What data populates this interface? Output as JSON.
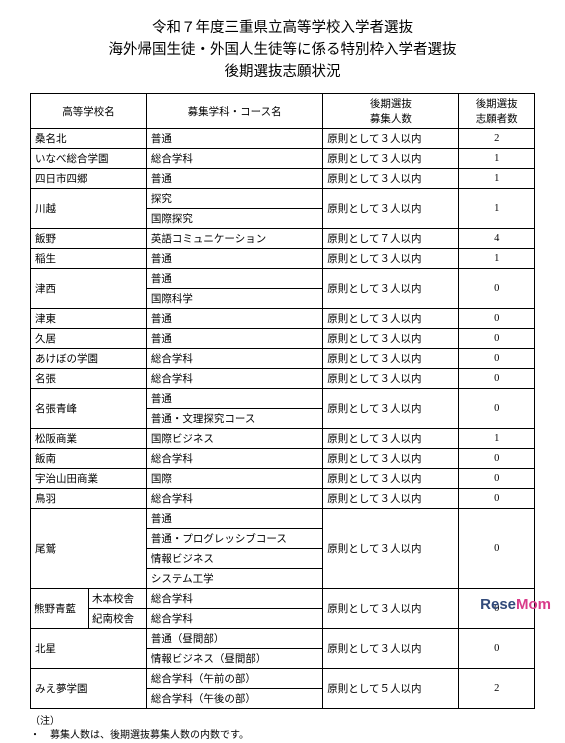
{
  "title_lines": [
    "令和７年度三重県立高等学校入学者選抜",
    "海外帰国生徒・外国人生徒等に係る特別枠入学者選抜",
    "後期選抜志願状況"
  ],
  "headers": {
    "school": "高等学校名",
    "dept": "募集学科・コース名",
    "capacity": "後期選抜\n募集人数",
    "applicants": "後期選抜\n志願者数"
  },
  "rows": [
    {
      "school": "桑名北",
      "dept": "普通",
      "cap": "原則として３人以内",
      "app": "2"
    },
    {
      "school": "いなべ総合学園",
      "dept": "総合学科",
      "cap": "原則として３人以内",
      "app": "1"
    },
    {
      "school": "四日市四郷",
      "dept": "普通",
      "cap": "原則として３人以内",
      "app": "1"
    },
    {
      "school": "川越",
      "depts": [
        "探究",
        "国際探究"
      ],
      "cap": "原則として３人以内",
      "app": "1"
    },
    {
      "school": "飯野",
      "dept": "英語コミュニケーション",
      "cap": "原則として７人以内",
      "app": "4"
    },
    {
      "school": "稲生",
      "dept": "普通",
      "cap": "原則として３人以内",
      "app": "1"
    },
    {
      "school": "津西",
      "depts": [
        "普通",
        "国際科学"
      ],
      "cap": "原則として３人以内",
      "app": "0"
    },
    {
      "school": "津東",
      "dept": "普通",
      "cap": "原則として３人以内",
      "app": "0"
    },
    {
      "school": "久居",
      "dept": "普通",
      "cap": "原則として３人以内",
      "app": "0"
    },
    {
      "school": "あけぼの学園",
      "dept": "総合学科",
      "cap": "原則として３人以内",
      "app": "0"
    },
    {
      "school": "名張",
      "dept": "総合学科",
      "cap": "原則として３人以内",
      "app": "0"
    },
    {
      "school": "名張青峰",
      "depts": [
        "普通",
        "普通・文理探究コース"
      ],
      "cap": "原則として３人以内",
      "app": "0"
    },
    {
      "school": "松阪商業",
      "dept": "国際ビジネス",
      "cap": "原則として３人以内",
      "app": "1"
    },
    {
      "school": "飯南",
      "dept": "総合学科",
      "cap": "原則として３人以内",
      "app": "0"
    },
    {
      "school": "宇治山田商業",
      "dept": "国際",
      "cap": "原則として３人以内",
      "app": "0"
    },
    {
      "school": "鳥羽",
      "dept": "総合学科",
      "cap": "原則として３人以内",
      "app": "0"
    },
    {
      "school": "尾鷲",
      "depts": [
        "普通",
        "普通・プログレッシブコース",
        "情報ビジネス",
        "システム工学"
      ],
      "cap": "原則として３人以内",
      "app": "0"
    },
    {
      "school_split": {
        "main": "熊野青藍",
        "subs": [
          "木本校舎",
          "紀南校舎"
        ]
      },
      "depts": [
        "総合学科",
        "総合学科"
      ],
      "cap": "原則として３人以内",
      "app": "0"
    },
    {
      "school": "北星",
      "depts": [
        "普通（昼間部）",
        "情報ビジネス（昼間部）"
      ],
      "cap": "原則として３人以内",
      "app": "0"
    },
    {
      "school": "みえ夢学園",
      "depts": [
        "総合学科（午前の部）",
        "総合学科（午後の部）"
      ],
      "cap": "原則として５人以内",
      "app": "2"
    }
  ],
  "note_label": "（注）",
  "note_text": "・　募集人数は、後期選抜募集人数の内数です。",
  "logo": {
    "rese": "Rese",
    "mom": "Mom"
  }
}
